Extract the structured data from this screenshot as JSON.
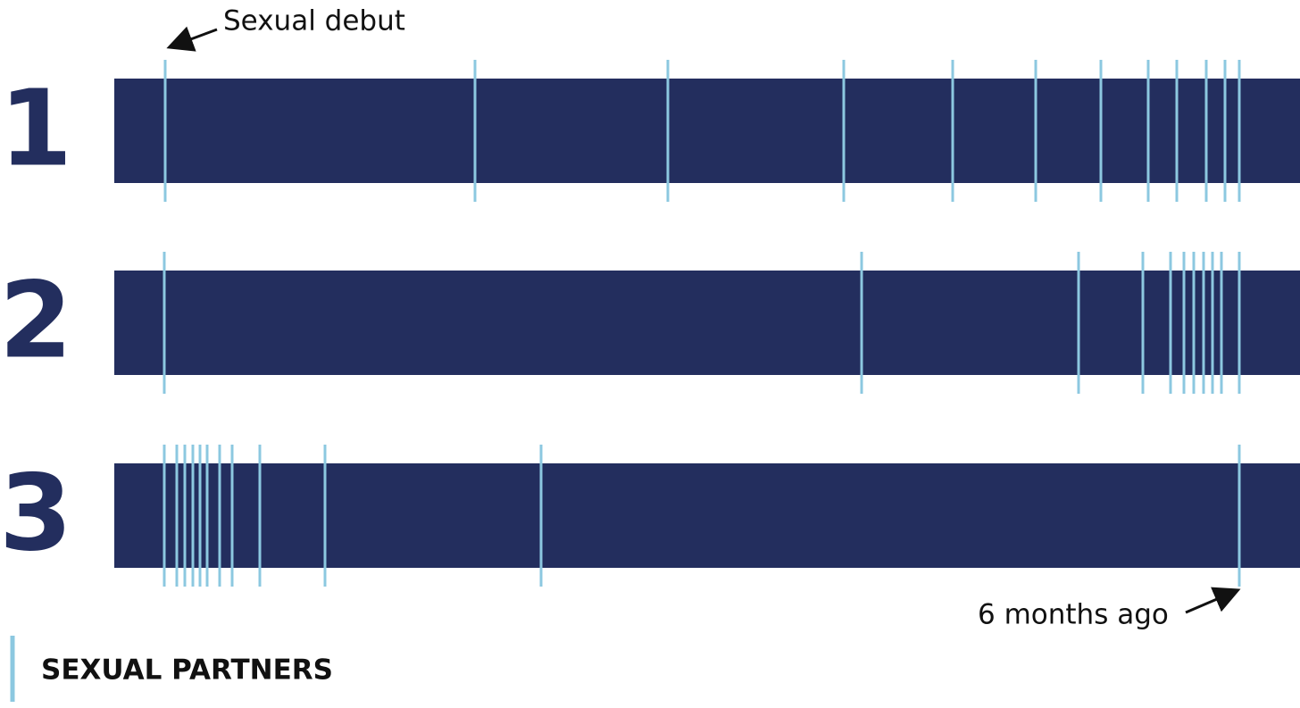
{
  "rows": [
    {
      "label": "1"
    },
    {
      "label": "2"
    },
    {
      "label": "3"
    }
  ],
  "annotations": {
    "start": "Sexual debut",
    "end": "6 months ago"
  },
  "legend": {
    "label": "SEXUAL PARTNERS"
  }
}
